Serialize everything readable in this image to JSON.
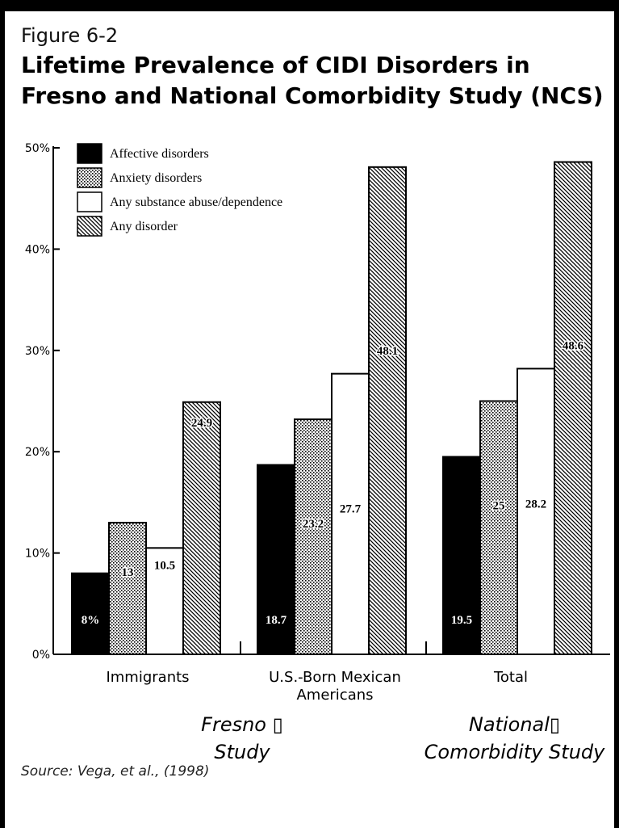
{
  "figure": {
    "label": "Figure 6-2",
    "title": "Lifetime Prevalence of CIDI Disorders in Fresno and National Comorbidity Study (NCS)"
  },
  "source": "Source: Vega, et al., (1998)",
  "chart_data": {
    "type": "bar",
    "categories": [
      "Immigrants",
      "U.S.-Born Mexican Americans",
      "Total"
    ],
    "study_labels": [
      "Fresno ▯ Study",
      "National▯ Comorbidity Study"
    ],
    "series": [
      {
        "name": "Affective disorders",
        "pattern": "solid",
        "values": [
          8,
          18.7,
          19.5
        ],
        "data_labels": [
          "8%",
          "18.7",
          "19.5"
        ]
      },
      {
        "name": "Anxiety disorders",
        "pattern": "dots",
        "values": [
          13,
          23.2,
          25
        ],
        "data_labels": [
          "13",
          "23.2",
          "25"
        ]
      },
      {
        "name": "Any substance abuse/dependence",
        "pattern": "empty",
        "values": [
          10.5,
          27.7,
          28.2
        ],
        "data_labels": [
          "10.5",
          "27.7",
          "28.2"
        ]
      },
      {
        "name": "Any disorder",
        "pattern": "hatch",
        "values": [
          24.9,
          48.1,
          48.6
        ],
        "data_labels": [
          "24.9",
          "48.1",
          "48.6"
        ]
      }
    ],
    "y_ticks": [
      "0%",
      "10%",
      "20%",
      "30%",
      "40%",
      "50%"
    ],
    "ylim": [
      0,
      50
    ],
    "grid": false,
    "legend_position": "top-left"
  }
}
